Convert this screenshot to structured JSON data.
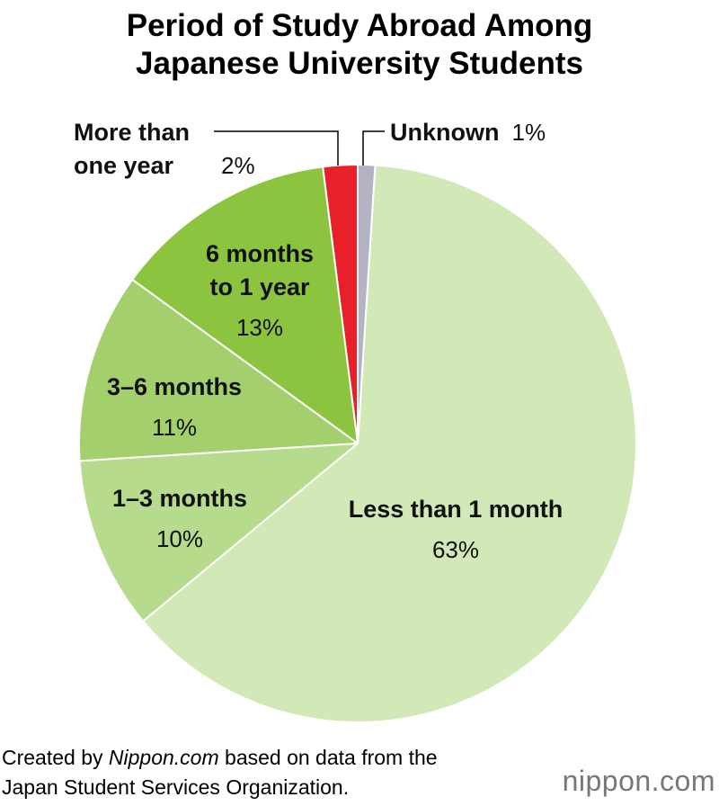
{
  "chart_data": {
    "type": "pie",
    "title": "Period of Study Abroad Among Japanese University Students",
    "categories": [
      "Less than 1 month",
      "1–3 months",
      "3–6 months",
      "6 months to 1 year",
      "More than one year",
      "Unknown"
    ],
    "values": [
      63,
      10,
      11,
      13,
      2,
      1
    ],
    "value_labels": [
      "63%",
      "10%",
      "11%",
      "13%",
      "2%",
      "1%"
    ],
    "colors": [
      "#d2e8b6",
      "#b6db8c",
      "#a3d06c",
      "#8cc43f",
      "#e8202a",
      "#b3b3c3"
    ],
    "start_category": 5,
    "source": {
      "prefix": "Created by",
      "site": "Nippon.com",
      "suffix": "based on data from the Japan Student Services Organization."
    },
    "logo": "nippon.com"
  }
}
